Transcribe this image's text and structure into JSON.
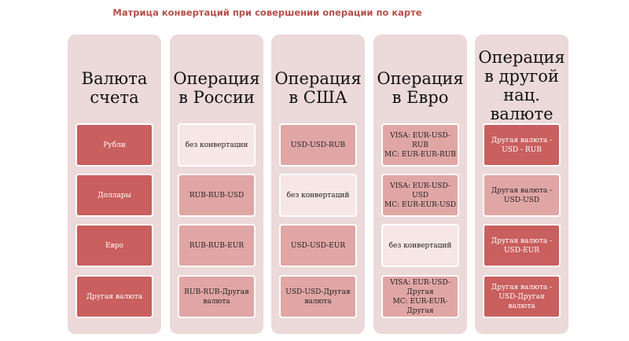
{
  "title": "Матрица конвертаций при совершении операции по карте",
  "colors": {
    "dark": "#c95f5e",
    "medium": "#e0a6a5",
    "light": "#f6e6e5",
    "column": "#ecd9da",
    "title": "#b5504a"
  },
  "columns": [
    {
      "header": "Валюта\nсчета",
      "cells": [
        {
          "text": "Рубли",
          "shade": "dark"
        },
        {
          "text": "Доллары",
          "shade": "dark"
        },
        {
          "text": "Евро",
          "shade": "dark"
        },
        {
          "text": "Другая валюта",
          "shade": "dark"
        }
      ]
    },
    {
      "header": "Операция\nв России",
      "cells": [
        {
          "text": "без конвертации",
          "shade": "light"
        },
        {
          "text": "RUB-RUB-USD",
          "shade": "med"
        },
        {
          "text": "RUB-RUB-EUR",
          "shade": "med"
        },
        {
          "text": "RUB-RUB-Другая\nвалюта",
          "shade": "med"
        }
      ]
    },
    {
      "header": "Операция\nв США",
      "cells": [
        {
          "text": "USD-USD-RUB",
          "shade": "med"
        },
        {
          "text": "без конвертаций",
          "shade": "light"
        },
        {
          "text": "USD-USD-EUR",
          "shade": "med"
        },
        {
          "text": "USD-USD-Другая\nвалюта",
          "shade": "med"
        }
      ]
    },
    {
      "header": "Операция\nв Евро",
      "cells": [
        {
          "text": "VISA: EUR-USD-RUB\nMC: EUR-EUR-RUB",
          "shade": "med"
        },
        {
          "text": "VISA: EUR-USD-USD\nMC: EUR-EUR-USD",
          "shade": "med"
        },
        {
          "text": "без конвертаций",
          "shade": "light"
        },
        {
          "text": "VISA: EUR-USD-\nДругая\nMC: EUR-EUR-\nДругая",
          "shade": "med"
        }
      ]
    },
    {
      "header": "Операция\nв другой\nнац.\nвалюте",
      "cells": [
        {
          "text": "Другая валюта -\nUSD - RUB",
          "shade": "dark"
        },
        {
          "text": "Другая валюта -\nUSD-USD",
          "shade": "med"
        },
        {
          "text": "Другая валюта -\nUSD-EUR",
          "shade": "dark"
        },
        {
          "text": "Другая валюта -\nUSD-Другая валюта",
          "shade": "dark"
        }
      ]
    }
  ]
}
